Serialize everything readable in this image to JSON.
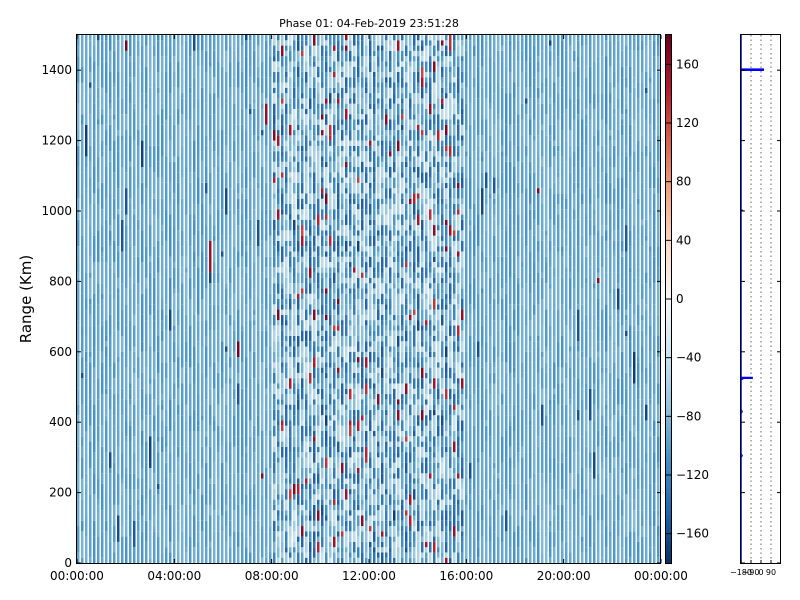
{
  "chart_data": [
    {
      "type": "heatmap",
      "title": "Phase 01: 04-Feb-2019 23:51:28",
      "xlabel": "",
      "ylabel": "Range (Km)",
      "x_ticks": [
        "00:00:00",
        "04:00:00",
        "08:00:00",
        "12:00:00",
        "16:00:00",
        "20:00:00",
        "00:00:00"
      ],
      "xlim": [
        "00:00:00",
        "24:00:00"
      ],
      "y_ticks": [
        0,
        200,
        400,
        600,
        800,
        1000,
        1200,
        1400
      ],
      "ylim": [
        0,
        1500
      ],
      "colorbar": {
        "colormap": "RdBu_r",
        "range": [
          -180,
          180
        ],
        "ticks": [
          -160,
          -120,
          -80,
          -40,
          0,
          40,
          80,
          120,
          160
        ],
        "tick_labels": [
          "−160",
          "−120",
          "−80",
          "−40",
          "0",
          "40",
          "80",
          "120",
          "160"
        ]
      },
      "typical_value": -95,
      "noisy_time_window": [
        "08:00:00",
        "16:00:00"
      ]
    },
    {
      "type": "line",
      "xlabel": "",
      "ylabel": "",
      "x_tick_labels": [
        "−180",
        "−90",
        "0",
        "90"
      ],
      "x_ticks": [
        -180,
        -90,
        0,
        90
      ],
      "xlim": [
        -180,
        180
      ],
      "ylim": [
        0,
        1500
      ],
      "grid": true,
      "series": [
        {
          "color": "#0000ff",
          "points": [
            [
              -180,
              0
            ],
            [
              -180,
              300
            ],
            [
              -170,
              305
            ],
            [
              -180,
              310
            ],
            [
              -180,
              425
            ],
            [
              -170,
              430
            ],
            [
              -180,
              435
            ],
            [
              -180,
              520
            ],
            [
              -170,
              522
            ],
            [
              -180,
              524
            ],
            [
              -180,
              525
            ],
            [
              -80,
              525
            ],
            [
              -80,
              527
            ],
            [
              -180,
              527
            ],
            [
              -180,
              1000
            ],
            [
              -170,
              1002
            ],
            [
              -180,
              1004
            ],
            [
              -180,
              1400
            ],
            [
              20,
              1400
            ],
            [
              20,
              1403
            ],
            [
              -180,
              1403
            ],
            [
              -180,
              1500
            ]
          ]
        }
      ]
    }
  ]
}
